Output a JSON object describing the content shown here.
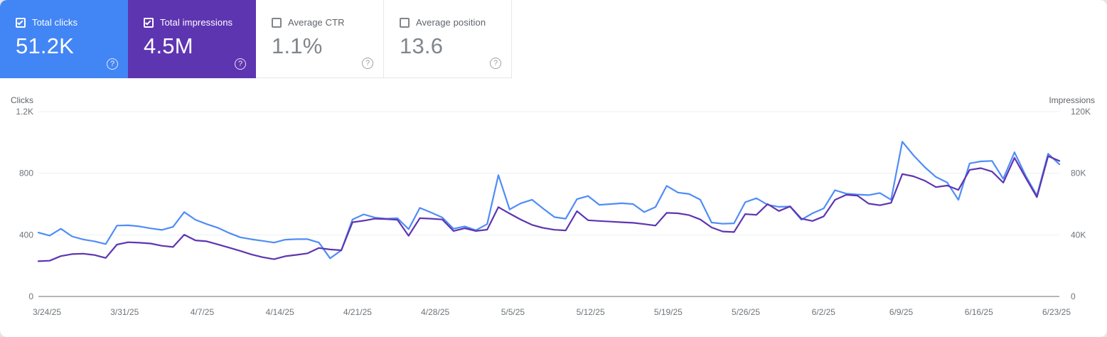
{
  "cards": [
    {
      "label": "Total clicks",
      "value": "51.2K",
      "checked": true,
      "bg": "#4285f4",
      "text": "#ffffff"
    },
    {
      "label": "Total impressions",
      "value": "4.5M",
      "checked": true,
      "bg": "#5e35b1",
      "text": "#ffffff"
    },
    {
      "label": "Average CTR",
      "value": "1.1%",
      "checked": false,
      "bg": "#ffffff",
      "text": "#80868b"
    },
    {
      "label": "Average position",
      "value": "13.6",
      "checked": false,
      "bg": "#ffffff",
      "text": "#80868b"
    }
  ],
  "icons": {
    "help_glyph": "?"
  },
  "chart_data": {
    "type": "line",
    "grid": true,
    "legend_position": "none",
    "left_axis": {
      "label": "Clicks",
      "max": 1200,
      "ticks": [
        {
          "label": "1.2K",
          "value": 1200
        },
        {
          "label": "800",
          "value": 800
        },
        {
          "label": "400",
          "value": 400
        },
        {
          "label": "0",
          "value": 0
        }
      ]
    },
    "right_axis": {
      "label": "Impressions",
      "max": 120000,
      "ticks": [
        {
          "label": "120K",
          "value": 120000
        },
        {
          "label": "80K",
          "value": 80000
        },
        {
          "label": "40K",
          "value": 40000
        },
        {
          "label": "0",
          "value": 0
        }
      ]
    },
    "x_tick_labels": [
      "3/24/25",
      "3/31/25",
      "4/7/25",
      "4/14/25",
      "4/21/25",
      "4/28/25",
      "5/5/25",
      "5/12/25",
      "5/19/25",
      "5/26/25",
      "6/2/25",
      "6/9/25",
      "6/16/25",
      "6/23/25"
    ],
    "x": [
      "3/24/25",
      "3/25/25",
      "3/26/25",
      "3/27/25",
      "3/28/25",
      "3/29/25",
      "3/30/25",
      "3/31/25",
      "4/1/25",
      "4/2/25",
      "4/3/25",
      "4/4/25",
      "4/5/25",
      "4/6/25",
      "4/7/25",
      "4/8/25",
      "4/9/25",
      "4/10/25",
      "4/11/25",
      "4/12/25",
      "4/13/25",
      "4/14/25",
      "4/15/25",
      "4/16/25",
      "4/17/25",
      "4/18/25",
      "4/19/25",
      "4/20/25",
      "4/21/25",
      "4/22/25",
      "4/23/25",
      "4/24/25",
      "4/25/25",
      "4/26/25",
      "4/27/25",
      "4/28/25",
      "4/29/25",
      "4/30/25",
      "5/1/25",
      "5/2/25",
      "5/3/25",
      "5/4/25",
      "5/5/25",
      "5/6/25",
      "5/7/25",
      "5/8/25",
      "5/9/25",
      "5/10/25",
      "5/11/25",
      "5/12/25",
      "5/13/25",
      "5/14/25",
      "5/15/25",
      "5/16/25",
      "5/17/25",
      "5/18/25",
      "5/19/25",
      "5/20/25",
      "5/21/25",
      "5/22/25",
      "5/23/25",
      "5/24/25",
      "5/25/25",
      "5/26/25",
      "5/27/25",
      "5/28/25",
      "5/29/25",
      "5/30/25",
      "5/31/25",
      "6/1/25",
      "6/2/25",
      "6/3/25",
      "6/4/25",
      "6/5/25",
      "6/6/25",
      "6/7/25",
      "6/8/25",
      "6/9/25",
      "6/10/25",
      "6/11/25",
      "6/12/25",
      "6/13/25",
      "6/14/25",
      "6/15/25",
      "6/16/25",
      "6/17/25",
      "6/18/25",
      "6/19/25",
      "6/20/25",
      "6/21/25",
      "6/22/25",
      "6/23/25"
    ],
    "series": [
      {
        "name": "Total clicks",
        "axis": "left",
        "color": "#4f8df6",
        "values": [
          415,
          395,
          440,
          390,
          370,
          358,
          340,
          460,
          462,
          455,
          442,
          432,
          452,
          548,
          498,
          470,
          446,
          412,
          384,
          371,
          361,
          350,
          369,
          372,
          372,
          350,
          248,
          300,
          500,
          533,
          512,
          505,
          508,
          437,
          575,
          545,
          513,
          440,
          455,
          430,
          470,
          788,
          565,
          605,
          628,
          570,
          515,
          505,
          632,
          652,
          595,
          600,
          605,
          600,
          548,
          580,
          718,
          675,
          665,
          628,
          480,
          472,
          475,
          612,
          638,
          595,
          582,
          584,
          498,
          540,
          572,
          690,
          668,
          662,
          658,
          672,
          628,
          1005,
          916,
          840,
          776,
          740,
          627,
          864,
          877,
          880,
          764,
          936,
          783,
          655,
          927,
          858
        ]
      },
      {
        "name": "Total impressions",
        "axis": "right",
        "color": "#5e35b1",
        "values": [
          22900,
          23200,
          26200,
          27500,
          27800,
          26900,
          25000,
          33700,
          35200,
          34900,
          34400,
          32900,
          32100,
          40100,
          36400,
          35800,
          33800,
          31700,
          29600,
          27300,
          25500,
          24200,
          26100,
          27000,
          28000,
          31500,
          30500,
          30000,
          48200,
          49200,
          50500,
          50200,
          49800,
          39400,
          50800,
          50500,
          50000,
          42500,
          44300,
          42500,
          43400,
          58000,
          53800,
          49900,
          46500,
          44500,
          43300,
          42900,
          55400,
          49500,
          49000,
          48600,
          48200,
          47800,
          47000,
          46000,
          54300,
          54000,
          52800,
          50000,
          44800,
          42200,
          41800,
          53500,
          53000,
          60000,
          55500,
          58500,
          50500,
          49000,
          52000,
          62700,
          66000,
          65500,
          60300,
          59200,
          60800,
          79500,
          78000,
          75200,
          71000,
          72000,
          69200,
          82200,
          83300,
          81100,
          73900,
          90000,
          77000,
          64500,
          91100,
          88000
        ]
      }
    ]
  }
}
